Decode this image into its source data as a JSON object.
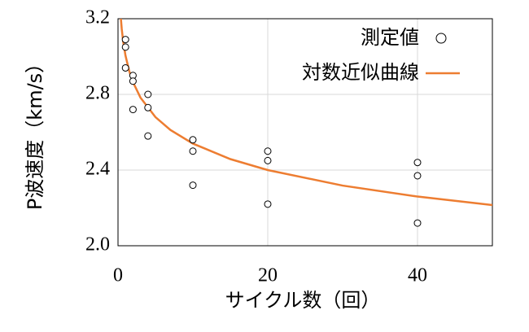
{
  "chart_data": {
    "type": "scatter",
    "xlabel": "サイクル数（回）",
    "ylabel": "P波速度（km/s）",
    "xlim": [
      0,
      50
    ],
    "ylim": [
      2.0,
      3.2
    ],
    "xticks": [
      0,
      20,
      40
    ],
    "yticks": [
      {
        "value": 2,
        "label": "2.0"
      },
      2.4,
      2.8,
      3.2
    ],
    "grid": true,
    "legend": "upper right",
    "series": [
      {
        "name": "測定値",
        "style": "marker",
        "color": "#000000",
        "x": [
          1,
          1,
          1,
          2,
          2,
          2,
          4,
          4,
          4,
          10,
          10,
          10,
          20,
          20,
          20,
          40,
          40,
          40
        ],
        "values": [
          3.09,
          3.05,
          2.94,
          2.9,
          2.87,
          2.72,
          2.8,
          2.73,
          2.58,
          2.56,
          2.5,
          2.32,
          2.5,
          2.45,
          2.22,
          2.44,
          2.37,
          2.12
        ]
      },
      {
        "name": "対数近似曲線",
        "style": "line",
        "color": "#ed7d31",
        "x": [
          0.35,
          0.5,
          0.7,
          1,
          1.5,
          2,
          3,
          5,
          7,
          10,
          15,
          20,
          30,
          40,
          50
        ],
        "values": [
          3.217,
          3.145,
          3.077,
          3.005,
          2.923,
          2.865,
          2.783,
          2.68,
          2.612,
          2.54,
          2.458,
          2.4,
          2.318,
          2.26,
          2.215
        ]
      }
    ]
  }
}
